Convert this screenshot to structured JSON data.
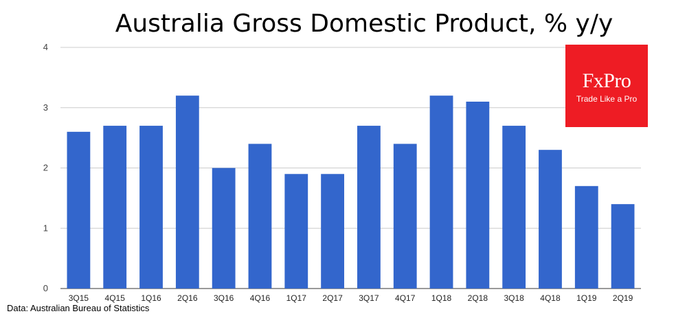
{
  "chart_data": {
    "type": "bar",
    "title": "Australia Gross Domestic Product, % y/y",
    "categories": [
      "3Q15",
      "4Q15",
      "1Q16",
      "2Q16",
      "3Q16",
      "4Q16",
      "1Q17",
      "2Q17",
      "3Q17",
      "4Q17",
      "1Q18",
      "2Q18",
      "3Q18",
      "4Q18",
      "1Q19",
      "2Q19"
    ],
    "values": [
      2.6,
      2.7,
      2.7,
      3.2,
      2.0,
      2.4,
      1.9,
      1.9,
      2.7,
      2.4,
      3.2,
      3.1,
      2.7,
      2.3,
      1.7,
      1.4
    ],
    "yticks": [
      0,
      1,
      2,
      3,
      4
    ],
    "ylim": [
      0,
      4
    ],
    "xlabel": "",
    "ylabel": "",
    "grid": true,
    "legend": "none",
    "bar_color": "#3366cc",
    "grid_color": "#cccccc"
  },
  "source_text": "Data: Australian Bureau of Statistics",
  "logo": {
    "name": "FxPro",
    "tagline": "Trade Like a Pro",
    "color": "#ee1c24"
  }
}
